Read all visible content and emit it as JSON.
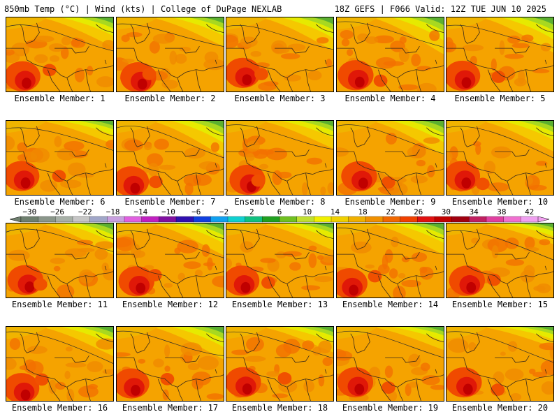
{
  "header": {
    "left": "850mb Temp (°C) | Wind (kts) | College of DuPage NEXLAB",
    "right": "18Z GEFS | F066 Valid: 12Z TUE JUN 10 2025"
  },
  "members": [
    "Ensemble Member: 1",
    "Ensemble Member: 2",
    "Ensemble Member: 3",
    "Ensemble Member: 4",
    "Ensemble Member: 5",
    "Ensemble Member: 6",
    "Ensemble Member: 7",
    "Ensemble Member: 8",
    "Ensemble Member: 9",
    "Ensemble Member: 10",
    "Ensemble Member: 11",
    "Ensemble Member: 12",
    "Ensemble Member: 13",
    "Ensemble Member: 14",
    "Ensemble Member: 15",
    "Ensemble Member: 16",
    "Ensemble Member: 17",
    "Ensemble Member: 18",
    "Ensemble Member: 19",
    "Ensemble Member: 20"
  ],
  "colorbar": {
    "ticks": [
      "−30",
      "−26",
      "−22",
      "−18",
      "−14",
      "−10",
      "−6",
      "−2",
      "2",
      "6",
      "10",
      "14",
      "18",
      "22",
      "26",
      "30",
      "34",
      "38",
      "42"
    ],
    "colors": [
      "#6e7f6e",
      "#8a968a",
      "#a7b0a7",
      "#c6c6c6",
      "#a0a6c8",
      "#c8a0e0",
      "#e060e0",
      "#c020c0",
      "#8010a0",
      "#3010b0",
      "#1040e0",
      "#10a0f0",
      "#10d0d0",
      "#10c080",
      "#20a020",
      "#70c020",
      "#c0e030",
      "#f0f000",
      "#f0d000",
      "#f0b000",
      "#f09000",
      "#f06800",
      "#f04000",
      "#e01010",
      "#c00000",
      "#a00010",
      "#c02060",
      "#e040a0",
      "#f070d0",
      "#f0a0f0"
    ]
  }
}
